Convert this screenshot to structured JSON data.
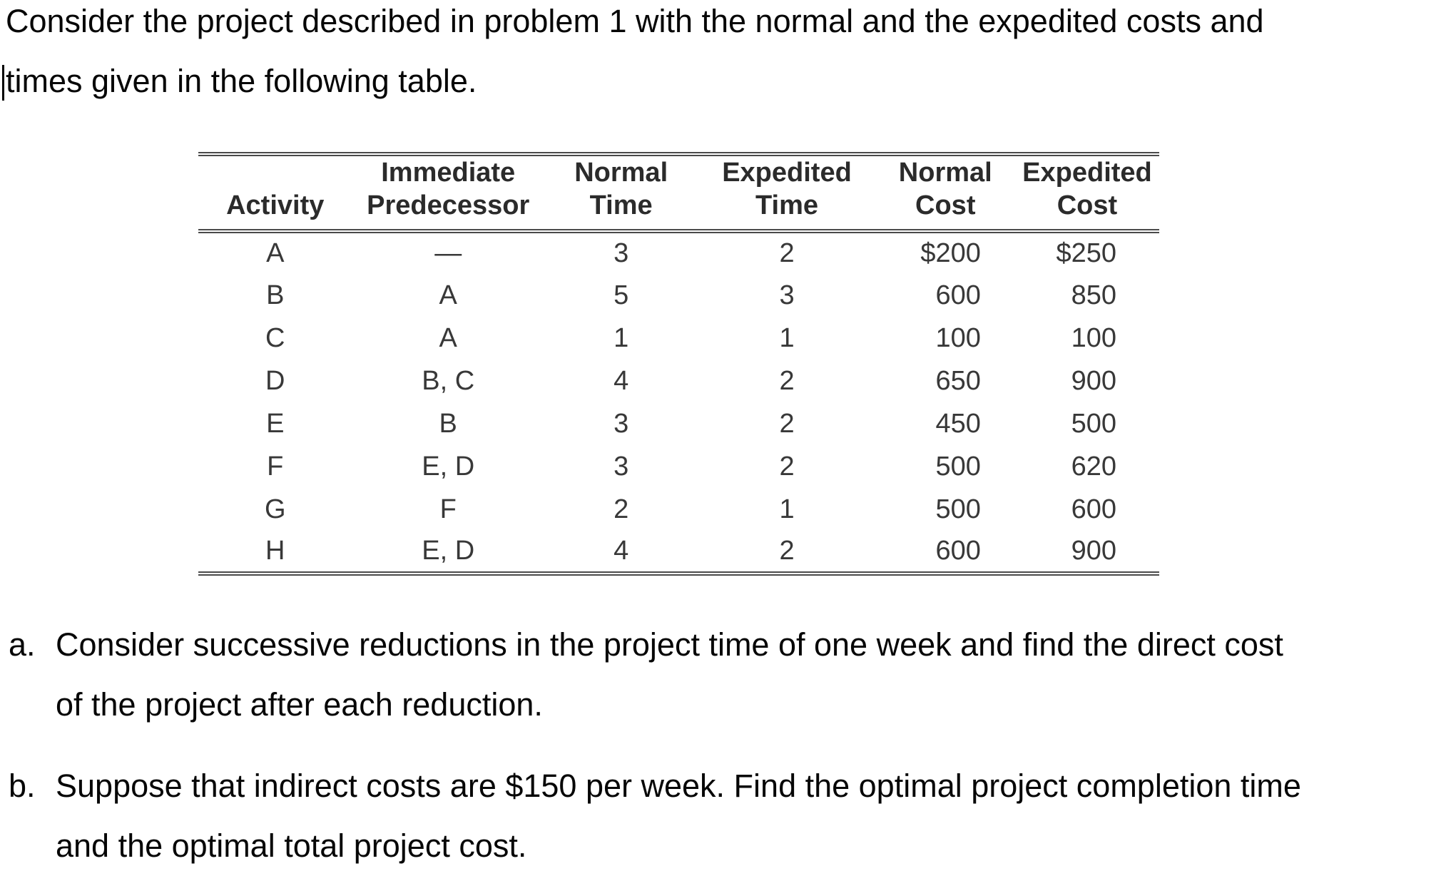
{
  "intro": {
    "lines": [
      "Consider the project described in problem 1 with the normal and the expedited costs and",
      "times given in the following table."
    ]
  },
  "table": {
    "headers": {
      "activity": {
        "line1": "",
        "line2": "Activity"
      },
      "predecessor": {
        "line1": "Immediate",
        "line2": "Predecessor"
      },
      "normal_time": {
        "line1": "Normal",
        "line2": "Time"
      },
      "exp_time": {
        "line1": "Expedited",
        "line2": "Time"
      },
      "normal_cost": {
        "line1": "Normal",
        "line2": "Cost"
      },
      "exp_cost": {
        "line1": "Expedited",
        "line2": "Cost"
      }
    },
    "rows": [
      {
        "activity": "A",
        "predecessor": "—",
        "normal_time": "3",
        "expedited_time": "2",
        "normal_cost": "$200",
        "expedited_cost": "$250"
      },
      {
        "activity": "B",
        "predecessor": "A",
        "normal_time": "5",
        "expedited_time": "3",
        "normal_cost": "600",
        "expedited_cost": "850"
      },
      {
        "activity": "C",
        "predecessor": "A",
        "normal_time": "1",
        "expedited_time": "1",
        "normal_cost": "100",
        "expedited_cost": "100"
      },
      {
        "activity": "D",
        "predecessor": "B, C",
        "normal_time": "4",
        "expedited_time": "2",
        "normal_cost": "650",
        "expedited_cost": "900"
      },
      {
        "activity": "E",
        "predecessor": "B",
        "normal_time": "3",
        "expedited_time": "2",
        "normal_cost": "450",
        "expedited_cost": "500"
      },
      {
        "activity": "F",
        "predecessor": "E, D",
        "normal_time": "3",
        "expedited_time": "2",
        "normal_cost": "500",
        "expedited_cost": "620"
      },
      {
        "activity": "G",
        "predecessor": "F",
        "normal_time": "2",
        "expedited_time": "1",
        "normal_cost": "500",
        "expedited_cost": "600"
      },
      {
        "activity": "H",
        "predecessor": "E, D",
        "normal_time": "4",
        "expedited_time": "2",
        "normal_cost": "600",
        "expedited_cost": "900"
      }
    ]
  },
  "questions": [
    {
      "marker": "a.",
      "lines": [
        "Consider successive reductions in the project time of one week and find the direct cost",
        "of the project after each reduction."
      ]
    },
    {
      "marker": "b.",
      "lines": [
        "Suppose that indirect costs are $150 per week. Find the optimal project completion time",
        "and the optimal total project cost."
      ]
    }
  ]
}
